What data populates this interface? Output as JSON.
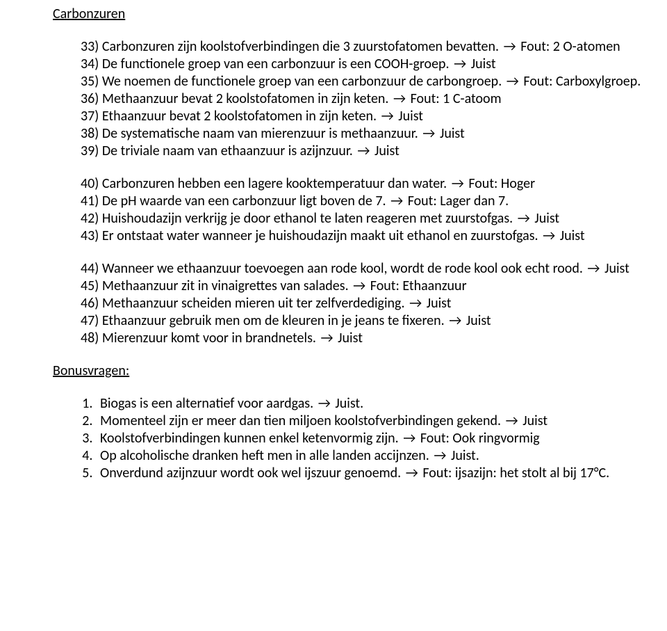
{
  "arrow": "→",
  "heading1": "Carbonzuren",
  "group1": [
    {
      "n": "33)",
      "text": "Carbonzuren zijn koolstofverbindingen die 3 zuurstofatomen bevatten.",
      "verdict": "Fout: 2 O-atomen"
    },
    {
      "n": "34)",
      "text": "De functionele groep van een carbonzuur is een COOH-groep.",
      "verdict": "Juist"
    },
    {
      "n": "35)",
      "text": "We noemen de functionele groep van een carbonzuur de carbongroep.",
      "verdict": "Fout: Carboxylgroep."
    },
    {
      "n": "36)",
      "text": "Methaanzuur bevat 2 koolstofatomen in zijn keten.",
      "verdict": "Fout: 1 C-atoom"
    },
    {
      "n": "37)",
      "text": "Ethaanzuur bevat 2 koolstofatomen in zijn keten.",
      "verdict": "Juist"
    },
    {
      "n": "38)",
      "text": "De systematische naam van mierenzuur is methaanzuur.",
      "verdict": "Juist"
    },
    {
      "n": "39)",
      "text": "De triviale naam van ethaanzuur is azijnzuur.",
      "verdict": "Juist"
    }
  ],
  "group2": [
    {
      "n": "40)",
      "text": "Carbonzuren hebben een lagere kooktemperatuur dan water.",
      "verdict": "Fout: Hoger"
    },
    {
      "n": "41)",
      "text": "De pH waarde van een carbonzuur ligt boven de 7.",
      "verdict": "Fout: Lager dan 7."
    },
    {
      "n": "42)",
      "text": "Huishoudazijn verkrijg je door ethanol te laten reageren met zuurstofgas.",
      "verdict": "Juist"
    },
    {
      "n": "43)",
      "text": "Er ontstaat water wanneer je huishoudazijn maakt uit ethanol en zuurstofgas.",
      "verdict": "Juist"
    }
  ],
  "group3": [
    {
      "n": "44)",
      "text": "Wanneer we ethaanzuur toevoegen aan rode kool, wordt de rode kool ook echt rood.",
      "verdict": "Juist"
    },
    {
      "n": "45)",
      "text": "Methaanzuur zit in vinaigrettes van salades.",
      "verdict": "Fout: Ethaanzuur"
    },
    {
      "n": "46)",
      "text": "Methaanzuur scheiden mieren uit ter zelfverdediging.",
      "verdict": "Juist"
    },
    {
      "n": "47)",
      "text": "Ethaanzuur gebruik men om de kleuren in je jeans te fixeren.",
      "verdict": "Juist"
    },
    {
      "n": "48)",
      "text": "Mierenzuur komt voor in brandnetels.",
      "verdict": "Juist"
    }
  ],
  "heading2": "Bonusvragen:",
  "bonus": [
    {
      "text": "Biogas is een alternatief voor aardgas.",
      "verdict": "Juist."
    },
    {
      "text": "Momenteel zijn er meer dan tien miljoen koolstofverbindingen gekend.",
      "verdict": "Juist"
    },
    {
      "text": "Koolstofverbindingen kunnen enkel ketenvormig zijn.",
      "verdict": "Fout: Ook ringvormig"
    },
    {
      "text": "Op alcoholische dranken heft men in alle landen accijnzen.",
      "verdict": "Juist."
    },
    {
      "text": "Onverdund azijnzuur wordt ook wel ijszuur genoemd.",
      "verdict": "Fout: ijsazijn: het stolt al bij 17°C."
    }
  ]
}
